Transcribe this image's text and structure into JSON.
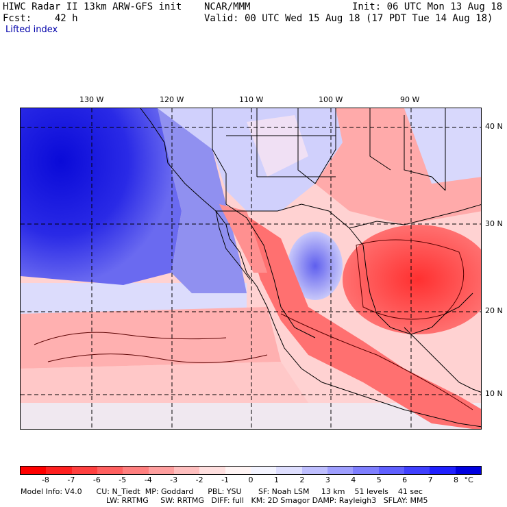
{
  "header": {
    "title": "HIWC Radar II 13km ARW-GFS init",
    "org": "NCAR/MMM",
    "init": "Init: 06 UTC Mon 13 Aug 18",
    "fcst": "Fcst:    42 h",
    "valid": "Valid: 00 UTC Wed 15 Aug 18 (17 PDT Tue 14 Aug 18)",
    "field": "Lifted index"
  },
  "map": {
    "lon_labels": [
      "130 W",
      "120 W",
      "110 W",
      "100 W",
      "90 W"
    ],
    "lat_labels": [
      "40 N",
      "30 N",
      "20 N",
      "10 N"
    ]
  },
  "colorbar": {
    "colors": [
      "#ff0000",
      "#ff2020",
      "#ff4040",
      "#ff6060",
      "#ff7f7f",
      "#ff9f9f",
      "#ffbfbf",
      "#ffdfdf",
      "#fff4f4",
      "#f4f4ff",
      "#dfdfff",
      "#bfbfff",
      "#9f9fff",
      "#7f7fff",
      "#6060ff",
      "#4040ff",
      "#2020ff",
      "#0000e0"
    ],
    "ticks": [
      "-8",
      "-7",
      "-6",
      "-5",
      "-4",
      "-3",
      "-2",
      "-1",
      "0",
      "1",
      "2",
      "3",
      "4",
      "5",
      "6",
      "7",
      "8",
      "°C"
    ]
  },
  "model_info": {
    "line1": "Model Info: V4.0      CU: N_Tiedt  MP: Goddard      PBL: YSU       SF: Noah LSM     13 km    51 levels    41 sec",
    "line2": "LW: RRTMG     SW: RRTMG   DIFF: full   KM: 2D Smagor DAMP: Rayleigh3   SFLAY: MM5"
  }
}
